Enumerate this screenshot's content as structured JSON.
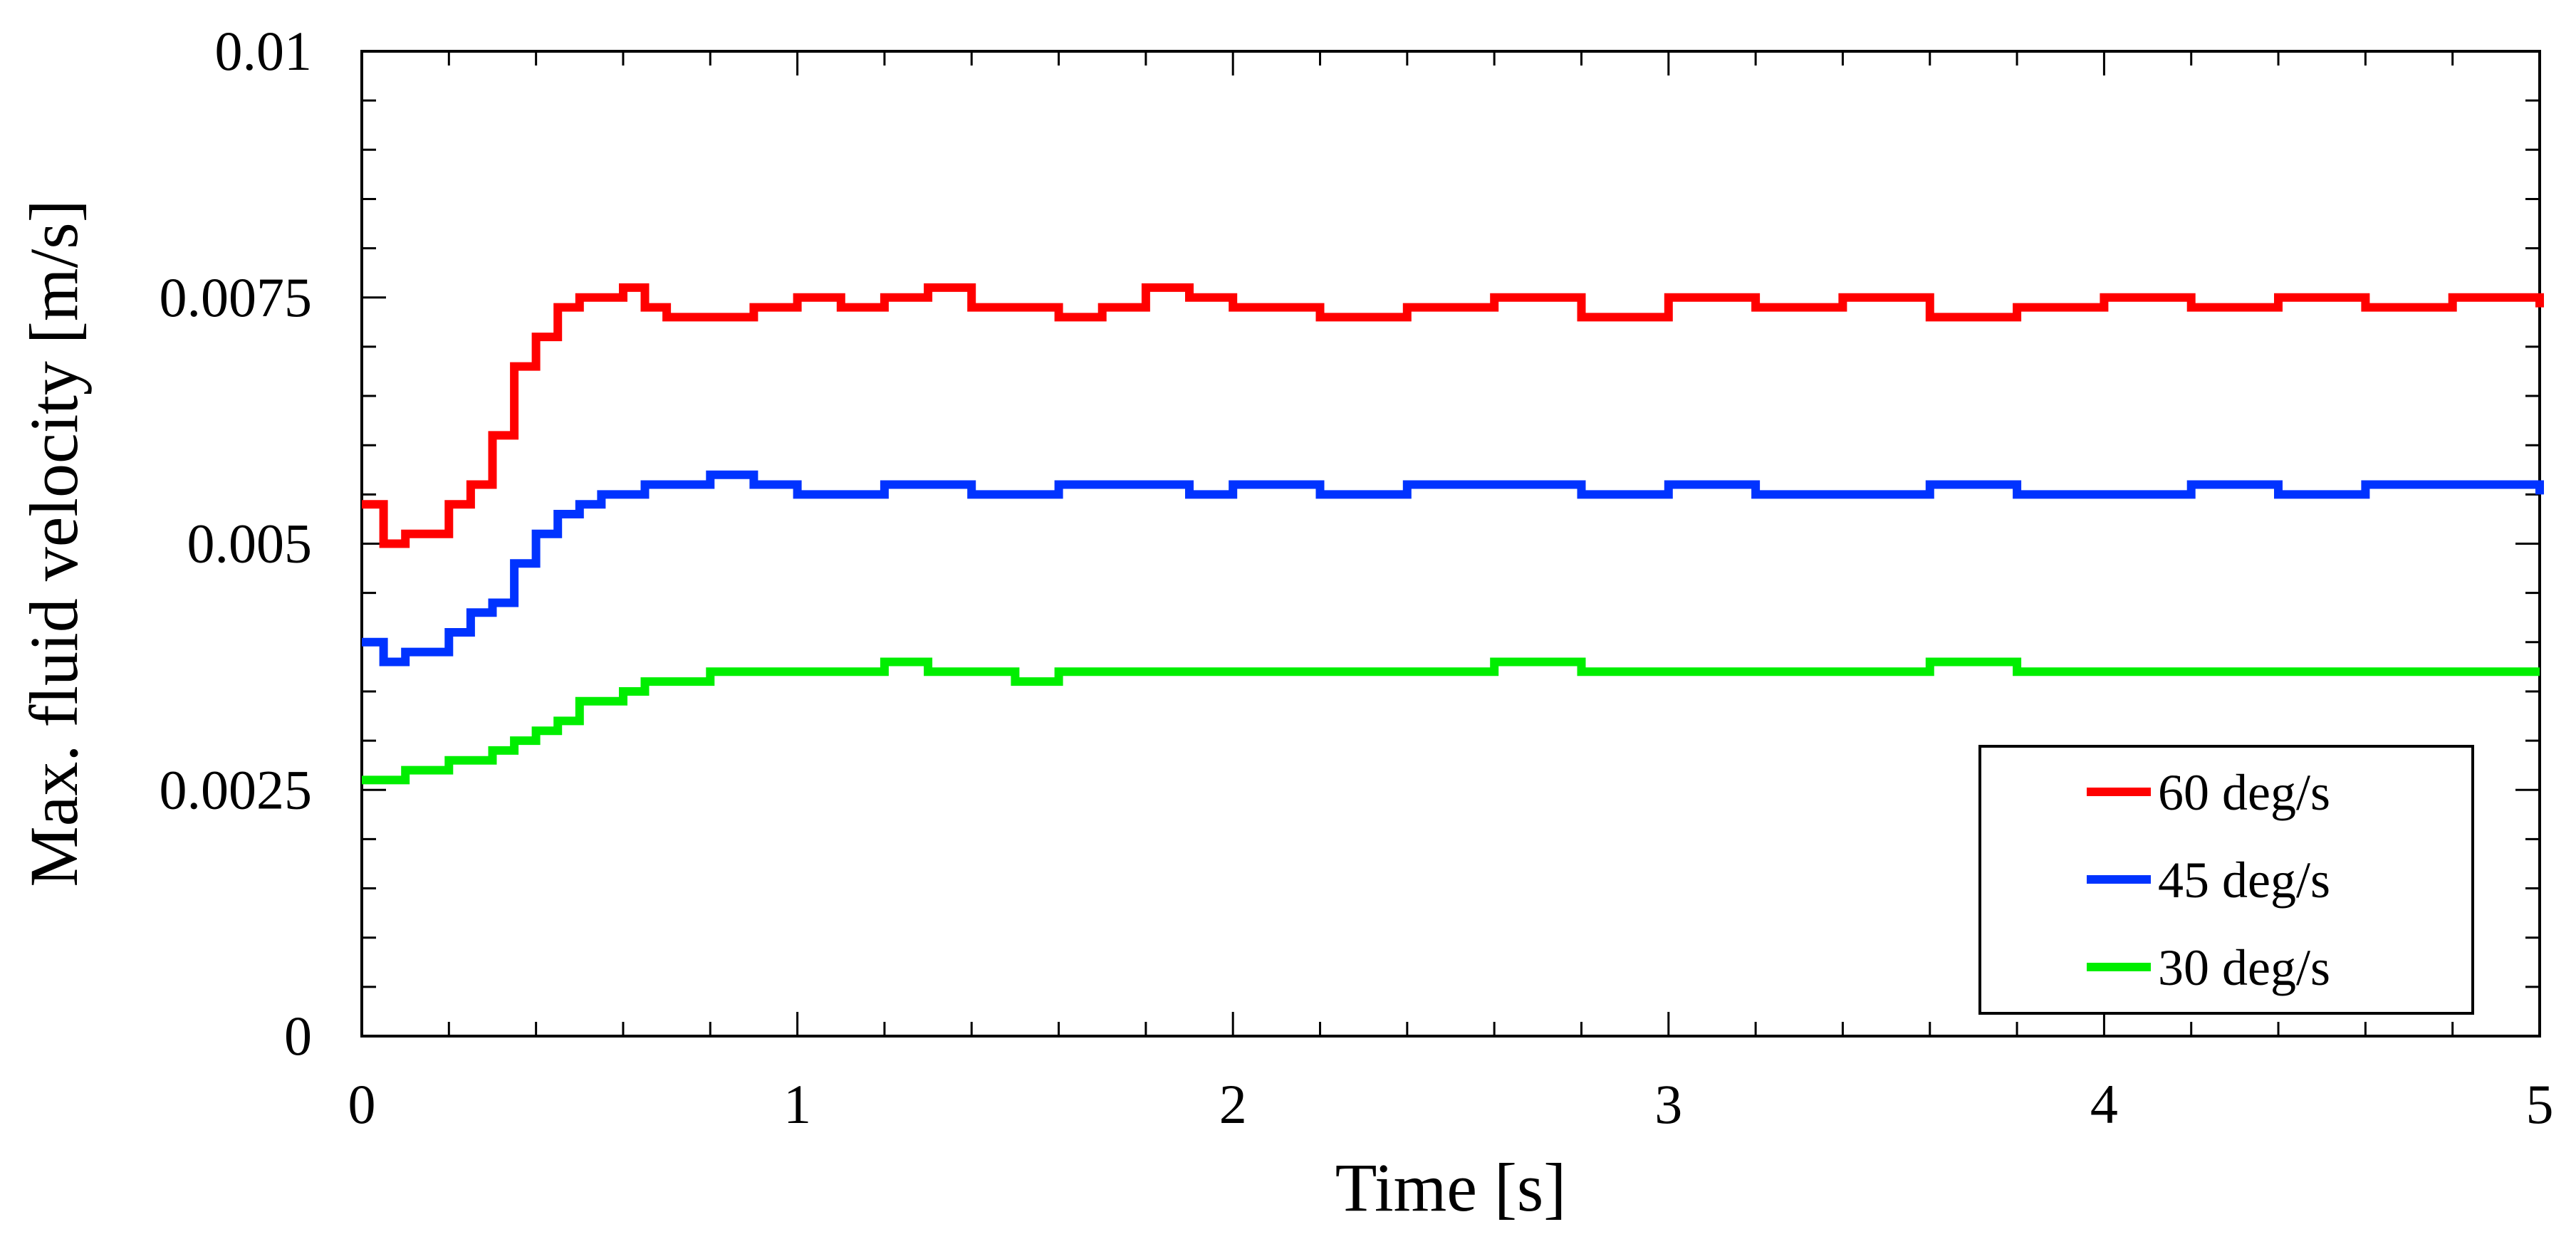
{
  "chart_data": {
    "type": "line",
    "title": "",
    "xlabel": "Time [s]",
    "ylabel": "Max. fluid velocity [m/s]",
    "xlim": [
      0,
      5
    ],
    "ylim": [
      0,
      0.01
    ],
    "xticks": [
      0,
      1,
      2,
      3,
      4,
      5
    ],
    "xtick_labels": [
      "0",
      "1",
      "2",
      "3",
      "4",
      "5"
    ],
    "yticks": [
      0,
      0.0025,
      0.005,
      0.0075,
      0.01
    ],
    "ytick_labels": [
      "0",
      "0.0025",
      "0.005",
      "0.0075",
      "0.01"
    ],
    "grid": false,
    "legend_position": "bottom-right",
    "x": [
      0,
      0.05,
      0.1,
      0.15,
      0.2,
      0.25,
      0.3,
      0.35,
      0.4,
      0.45,
      0.5,
      0.55,
      0.6,
      0.65,
      0.7,
      0.8,
      0.9,
      1.0,
      1.1,
      1.2,
      1.3,
      1.4,
      1.5,
      1.6,
      1.7,
      1.8,
      1.9,
      2.0,
      2.2,
      2.4,
      2.6,
      2.8,
      3.0,
      3.2,
      3.4,
      3.6,
      3.8,
      4.0,
      4.2,
      4.4,
      4.6,
      4.8,
      5.0
    ],
    "series": [
      {
        "name": "60 deg/s",
        "color": "#ff0000",
        "values": [
          0.0054,
          0.005,
          0.0051,
          0.0051,
          0.0054,
          0.0056,
          0.0061,
          0.0068,
          0.0071,
          0.0074,
          0.0075,
          0.0075,
          0.0076,
          0.0074,
          0.0073,
          0.0073,
          0.0074,
          0.0075,
          0.0074,
          0.0075,
          0.0076,
          0.0074,
          0.0074,
          0.0073,
          0.0074,
          0.0076,
          0.0075,
          0.0074,
          0.0073,
          0.0074,
          0.0075,
          0.0073,
          0.0075,
          0.0074,
          0.0075,
          0.0073,
          0.0074,
          0.0075,
          0.0074,
          0.0075,
          0.0074,
          0.0075,
          0.0074
        ]
      },
      {
        "name": "45 deg/s",
        "color": "#0033ff",
        "values": [
          0.004,
          0.0038,
          0.0039,
          0.0039,
          0.0041,
          0.0043,
          0.0044,
          0.0048,
          0.0051,
          0.0053,
          0.0054,
          0.0055,
          0.0055,
          0.0056,
          0.0056,
          0.0057,
          0.0056,
          0.0055,
          0.0055,
          0.0056,
          0.0056,
          0.0055,
          0.0055,
          0.0056,
          0.0056,
          0.0056,
          0.0055,
          0.0056,
          0.0055,
          0.0056,
          0.0056,
          0.0055,
          0.0056,
          0.0055,
          0.0055,
          0.0056,
          0.0055,
          0.0055,
          0.0056,
          0.0055,
          0.0056,
          0.0056,
          0.0055
        ]
      },
      {
        "name": "30 deg/s",
        "color": "#00ee00",
        "values": [
          0.0026,
          0.0026,
          0.0027,
          0.0027,
          0.0028,
          0.0028,
          0.0029,
          0.003,
          0.0031,
          0.0032,
          0.0034,
          0.0034,
          0.0035,
          0.0036,
          0.0036,
          0.0037,
          0.0037,
          0.0037,
          0.0037,
          0.0038,
          0.0037,
          0.0037,
          0.0036,
          0.0037,
          0.0037,
          0.0037,
          0.0037,
          0.0037,
          0.0037,
          0.0037,
          0.0038,
          0.0037,
          0.0037,
          0.0037,
          0.0037,
          0.0038,
          0.0037,
          0.0037,
          0.0037,
          0.0037,
          0.0037,
          0.0037,
          0.0037
        ]
      }
    ]
  }
}
